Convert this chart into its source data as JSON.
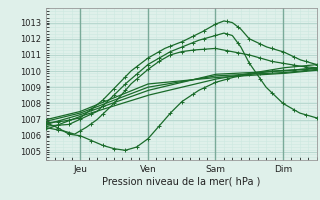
{
  "xlabel": "Pression niveau de la mer( hPa )",
  "ylim": [
    1004.5,
    1013.8
  ],
  "xlim": [
    0,
    96
  ],
  "yticks": [
    1005,
    1006,
    1007,
    1008,
    1009,
    1010,
    1011,
    1012,
    1013
  ],
  "xtick_positions": [
    12,
    36,
    60,
    84
  ],
  "xtick_labels": [
    "Jeu",
    "Ven",
    "Sam",
    "Dim"
  ],
  "bg_color": "#dff0ea",
  "grid_major_color": "#b8d8d0",
  "grid_minor_color": "#cce8e0",
  "line_color": "#1a6b2a",
  "fig_bg": "#dff0ea",
  "day_line_color": "#7aaa99"
}
